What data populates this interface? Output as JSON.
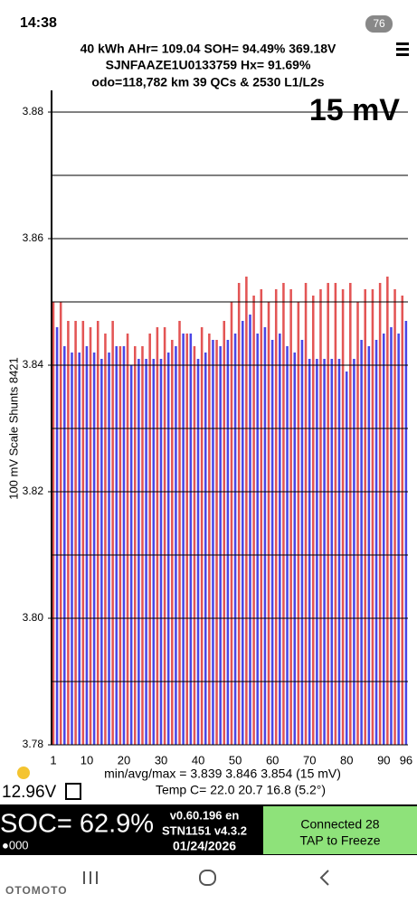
{
  "status_bar": {
    "time": "14:38",
    "battery": "76"
  },
  "header": {
    "line1": "40 kWh  AHr= 109.04  SOH= 94.49%  369.18V",
    "line2": "SJNFAAZE1U0133759  Hx= 91.69%",
    "line3": "odo=118,782 km 39 QCs & 2530 L1/L2s"
  },
  "chart_data": {
    "type": "bar",
    "annotation": "15 mV",
    "y_label": "100 mV Scale  Shunts 8421",
    "categories": [
      1,
      null,
      null,
      null,
      null,
      null,
      null,
      null,
      null,
      10,
      null,
      null,
      null,
      null,
      null,
      null,
      null,
      null,
      null,
      20,
      null,
      null,
      null,
      null,
      null,
      null,
      null,
      null,
      null,
      30,
      null,
      null,
      null,
      null,
      null,
      null,
      null,
      null,
      null,
      40,
      null,
      null,
      null,
      null,
      null,
      null,
      null,
      null,
      null,
      50,
      null,
      null,
      null,
      null,
      null,
      null,
      null,
      null,
      null,
      60,
      null,
      null,
      null,
      null,
      null,
      null,
      null,
      null,
      null,
      70,
      null,
      null,
      null,
      null,
      null,
      null,
      null,
      null,
      null,
      80,
      null,
      null,
      null,
      null,
      null,
      null,
      null,
      null,
      null,
      90,
      null,
      null,
      null,
      null,
      null,
      96
    ],
    "values": [
      3.85,
      3.846,
      3.85,
      3.843,
      3.847,
      3.842,
      3.847,
      3.842,
      3.847,
      3.843,
      3.846,
      3.842,
      3.847,
      3.841,
      3.845,
      3.842,
      3.847,
      3.843,
      3.843,
      3.843,
      3.845,
      3.84,
      3.843,
      3.841,
      3.843,
      3.841,
      3.845,
      3.841,
      3.846,
      3.841,
      3.846,
      3.842,
      3.844,
      3.843,
      3.847,
      3.845,
      3.845,
      3.845,
      3.843,
      3.841,
      3.846,
      3.842,
      3.845,
      3.844,
      3.844,
      3.843,
      3.847,
      3.844,
      3.85,
      3.845,
      3.853,
      3.847,
      3.854,
      3.848,
      3.851,
      3.845,
      3.852,
      3.846,
      3.85,
      3.844,
      3.852,
      3.845,
      3.853,
      3.843,
      3.852,
      3.842,
      3.85,
      3.844,
      3.853,
      3.841,
      3.851,
      3.841,
      3.852,
      3.841,
      3.853,
      3.841,
      3.853,
      3.841,
      3.852,
      3.839,
      3.853,
      3.841,
      3.85,
      3.844,
      3.852,
      3.843,
      3.852,
      3.844,
      3.853,
      3.845,
      3.854,
      3.846,
      3.852,
      3.845,
      3.851,
      3.847
    ],
    "color_pattern": [
      "#e35555",
      "#4a46e6"
    ],
    "ylim": [
      3.78,
      3.88
    ],
    "yticks": [
      3.78,
      {
        "value": 3.8,
        "label": "3.80"
      },
      3.82,
      3.84,
      3.86,
      3.88
    ],
    "minor_yticks": [
      3.79,
      3.81,
      3.83,
      3.85,
      3.87
    ],
    "grid": true,
    "stats": "min/avg/max = 3.839 3.846 3.854  (15 mV)",
    "temps": "Temp C= 22.0  20.7  16.8  (5.2°)"
  },
  "aux_voltage": "12.96V",
  "footer": {
    "soc": "SOC= 62.9%",
    "dots": "●000",
    "version": "v0.60.196 en",
    "adapter": "STN1151 v4.3.2",
    "date": "01/24/2026",
    "button1": "Connected 28",
    "button2": "TAP to Freeze",
    "watermark": "OTOMOTO"
  }
}
